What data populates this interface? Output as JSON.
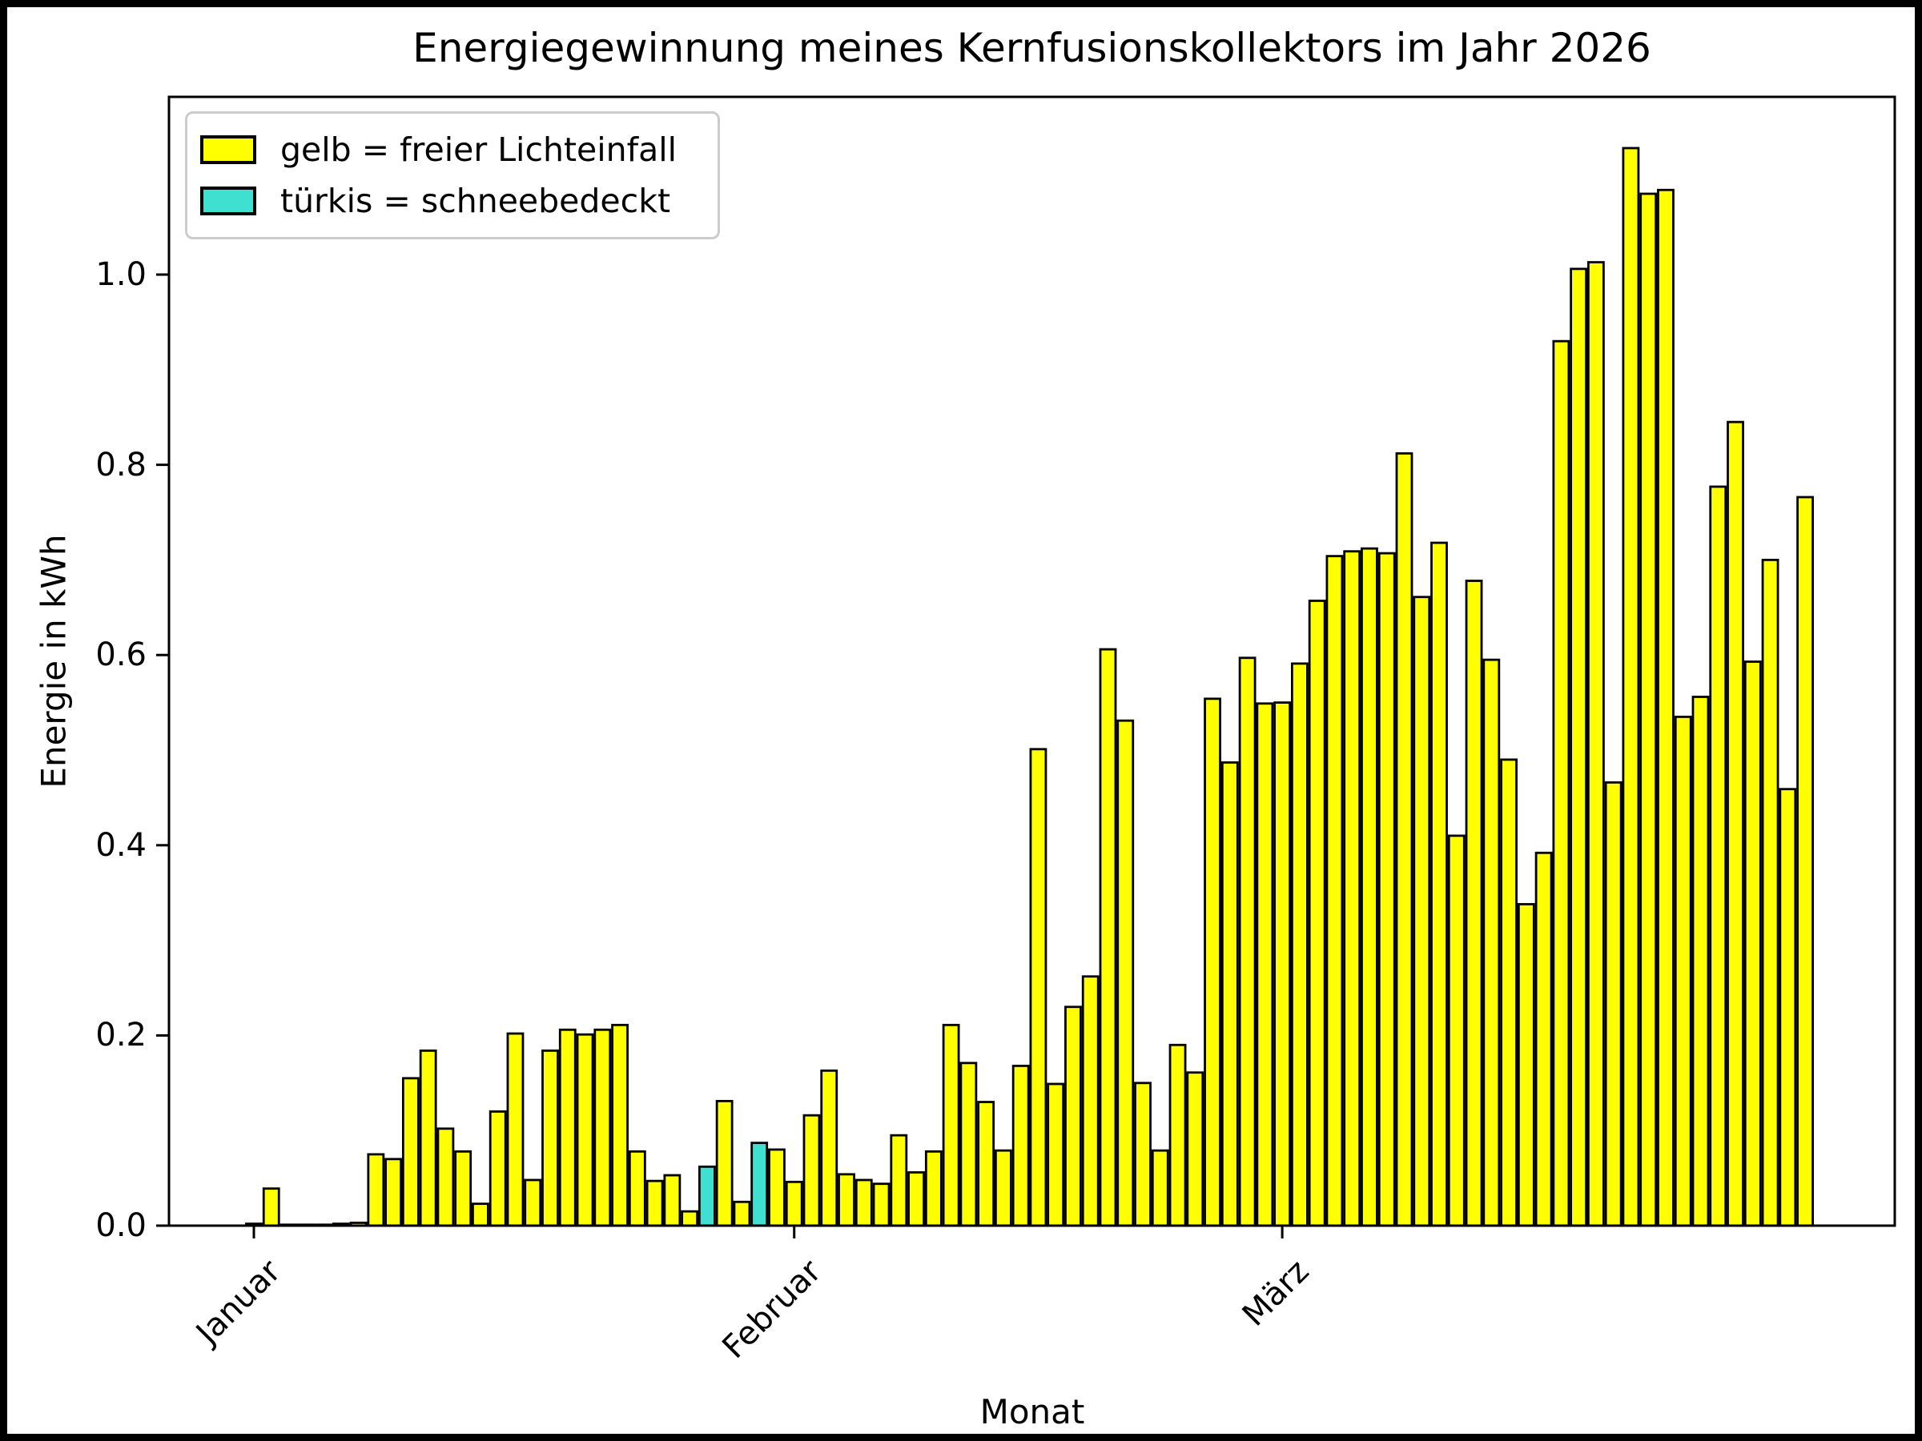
{
  "figure": {
    "title": "Energiegewinnung meines Kernfusionskollektors im Jahr 2026",
    "xlabel": "Monat",
    "ylabel": "Energie in kWh"
  },
  "legend": {
    "entries": [
      {
        "label": "gelb = freier Lichteinfall",
        "color": "#ffff00"
      },
      {
        "label": "türkis = schneebedeckt",
        "color": "#40e0d0"
      }
    ]
  },
  "chart_data": {
    "type": "bar",
    "title": "Energiegewinnung meines Kernfusionskollektors im Jahr 2026",
    "xlabel": "Monat",
    "ylabel": "Energie in kWh",
    "ylim": [
      0.0,
      1.187
    ],
    "grid": false,
    "legend_position": "upper left",
    "y_ticks": [
      "0.0",
      "0.2",
      "0.4",
      "0.6",
      "0.8",
      "1.0"
    ],
    "y_tick_values": [
      0.0,
      0.2,
      0.4,
      0.6,
      0.8,
      1.0
    ],
    "x_ticks": [
      {
        "label": "Januar",
        "day_index": 0
      },
      {
        "label": "Februar",
        "day_index": 31
      },
      {
        "label": "März",
        "day_index": 59
      }
    ],
    "series_note": "one bar per day, Jan 1 to Mar 31 2026, kWh",
    "bar_color_free": "#ffff00",
    "bar_color_snow": "#40e0d0",
    "bar_edge_color": "#000000",
    "snow_day_indices": [
      26,
      29
    ],
    "values": [
      0.002,
      0.039,
      0.001,
      0.001,
      0.001,
      0.002,
      0.003,
      0.075,
      0.07,
      0.155,
      0.184,
      0.102,
      0.078,
      0.023,
      0.12,
      0.202,
      0.048,
      0.184,
      0.206,
      0.201,
      0.206,
      0.211,
      0.078,
      0.047,
      0.053,
      0.015,
      0.062,
      0.131,
      0.025,
      0.087,
      0.08,
      0.046,
      0.116,
      0.163,
      0.054,
      0.048,
      0.044,
      0.095,
      0.056,
      0.078,
      0.211,
      0.171,
      0.13,
      0.079,
      0.168,
      0.501,
      0.149,
      0.23,
      0.262,
      0.606,
      0.531,
      0.15,
      0.079,
      0.19,
      0.161,
      0.554,
      0.487,
      0.597,
      0.549,
      0.55,
      0.591,
      0.657,
      0.704,
      0.709,
      0.712,
      0.707,
      0.812,
      0.661,
      0.718,
      0.41,
      0.678,
      0.595,
      0.49,
      0.338,
      0.392,
      0.93,
      1.006,
      1.013,
      0.466,
      1.133,
      1.085,
      1.089,
      0.535,
      0.556,
      0.777,
      0.845,
      0.593,
      0.7,
      0.459,
      0.766
    ]
  }
}
